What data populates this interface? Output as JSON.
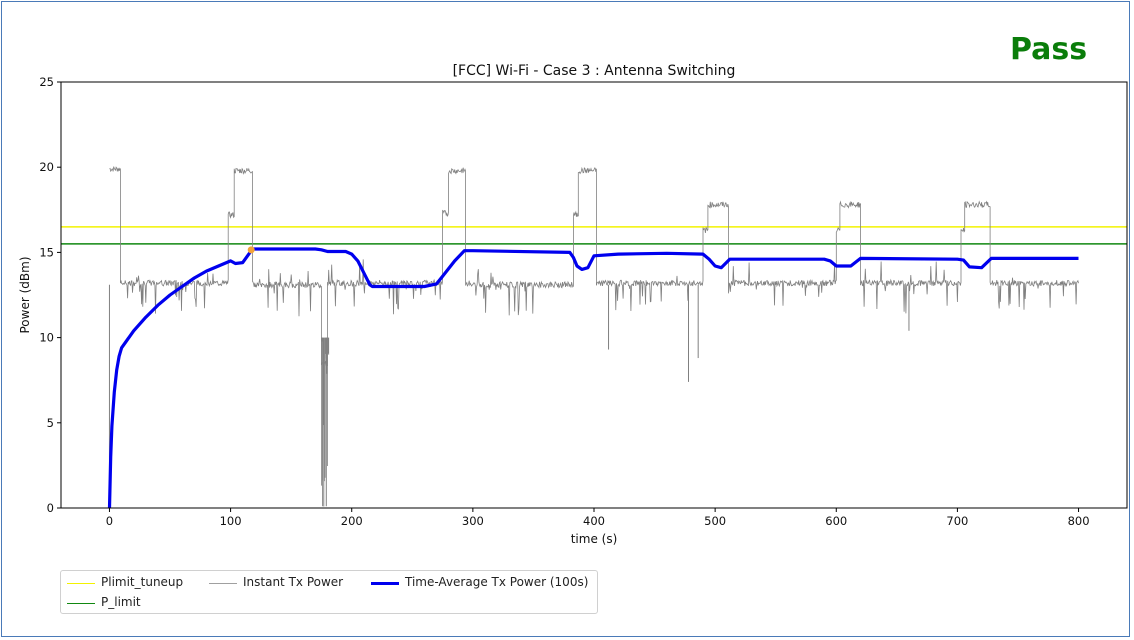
{
  "verdict": {
    "text": "Pass",
    "color": "#0a7d0a"
  },
  "chart_data": {
    "type": "line",
    "title": "[FCC] Wi-Fi - Case 3 : Antenna Switching",
    "xlabel": "time (s)",
    "ylabel": "Power (dBm)",
    "xlim": [
      -40,
      840
    ],
    "ylim": [
      0,
      25
    ],
    "xticks": [
      0,
      100,
      200,
      300,
      400,
      500,
      600,
      700,
      800
    ],
    "yticks": [
      0,
      5,
      10,
      15,
      20,
      25
    ],
    "grid": false,
    "legend_position": "below-left",
    "hlines": [
      {
        "name": "Plimit_tuneup",
        "y": 16.5,
        "color": "#f2f200"
      },
      {
        "name": "P_limit",
        "y": 15.5,
        "color": "#118811"
      }
    ],
    "series": [
      {
        "name": "Instant Tx Power",
        "color": "#808080",
        "segments": [
          {
            "x": [
              0,
              9
            ],
            "y": 19.9
          },
          {
            "x": 9,
            "y": 13.2,
            "gap": 0
          },
          {
            "x": [
              9,
              98
            ],
            "y": 13.2
          },
          {
            "x": [
              98,
              103
            ],
            "y": 17.2
          },
          {
            "x": [
              103,
              118
            ],
            "y": 19.8
          },
          {
            "x": [
              118,
              175
            ],
            "y": 13.1
          },
          {
            "x": [
              175,
              180
            ],
            "y": 8.5
          },
          {
            "x": [
              180,
              275
            ],
            "y": 13.2
          },
          {
            "x": [
              275,
              280
            ],
            "y": 17.3
          },
          {
            "x": [
              280,
              294
            ],
            "y": 19.8
          },
          {
            "x": [
              294,
              383
            ],
            "y": 13.1
          },
          {
            "x": [
              383,
              387
            ],
            "y": 17.2
          },
          {
            "x": [
              387,
              402
            ],
            "y": 19.8
          },
          {
            "x": [
              402,
              490
            ],
            "y": 13.2
          },
          {
            "x": [
              490,
              494
            ],
            "y": 16.3
          },
          {
            "x": [
              494,
              511
            ],
            "y": 17.8
          },
          {
            "x": [
              511,
              600
            ],
            "y": 13.2
          },
          {
            "x": [
              600,
              603
            ],
            "y": 16.3
          },
          {
            "x": [
              603,
              620
            ],
            "y": 17.8
          },
          {
            "x": [
              620,
              703
            ],
            "y": 13.2
          },
          {
            "x": [
              703,
              706
            ],
            "y": 16.3
          },
          {
            "x": [
              706,
              727
            ],
            "y": 17.8
          },
          {
            "x": [
              727,
              800
            ],
            "y": 13.2
          }
        ],
        "dropouts": [
          {
            "x": 0,
            "y": 0.2
          },
          {
            "x": 176,
            "y": 0.1
          },
          {
            "x": 179,
            "y": 0.1
          },
          {
            "x": 478,
            "y": 7.4
          },
          {
            "x": 486,
            "y": 8.8
          },
          {
            "x": 412,
            "y": 9.3
          },
          {
            "x": 660,
            "y": 10.4
          }
        ]
      },
      {
        "name": "Time-Average Tx Power (100s)",
        "color": "#0000ee",
        "x": [
          0,
          1,
          2,
          4,
          6,
          8,
          10,
          20,
          30,
          40,
          50,
          60,
          70,
          80,
          90,
          100,
          104,
          110,
          116,
          118,
          170,
          175,
          180,
          195,
          200,
          205,
          210,
          215,
          217,
          230,
          260,
          270,
          275,
          285,
          293,
          300,
          380,
          383,
          386,
          390,
          395,
          400,
          420,
          460,
          490,
          495,
          500,
          505,
          512,
          590,
          595,
          600,
          612,
          620,
          700,
          705,
          710,
          720,
          728,
          800
        ],
        "y": [
          0,
          3,
          4.8,
          6.8,
          8.1,
          8.9,
          9.4,
          10.4,
          11.2,
          11.9,
          12.5,
          13,
          13.5,
          13.9,
          14.2,
          14.5,
          14.35,
          14.4,
          15.0,
          15.2,
          15.2,
          15.15,
          15.05,
          15.05,
          14.9,
          14.5,
          13.8,
          13.1,
          13.0,
          13.0,
          13.0,
          13.15,
          13.6,
          14.5,
          15.1,
          15.1,
          15.0,
          14.7,
          14.2,
          14.0,
          14.1,
          14.8,
          14.9,
          14.95,
          14.9,
          14.6,
          14.2,
          14.1,
          14.6,
          14.6,
          14.5,
          14.2,
          14.2,
          14.65,
          14.6,
          14.55,
          14.15,
          14.1,
          14.65,
          14.65
        ]
      }
    ],
    "marker": {
      "x": 117,
      "y": 15.15,
      "color": "#f2a33a"
    }
  }
}
